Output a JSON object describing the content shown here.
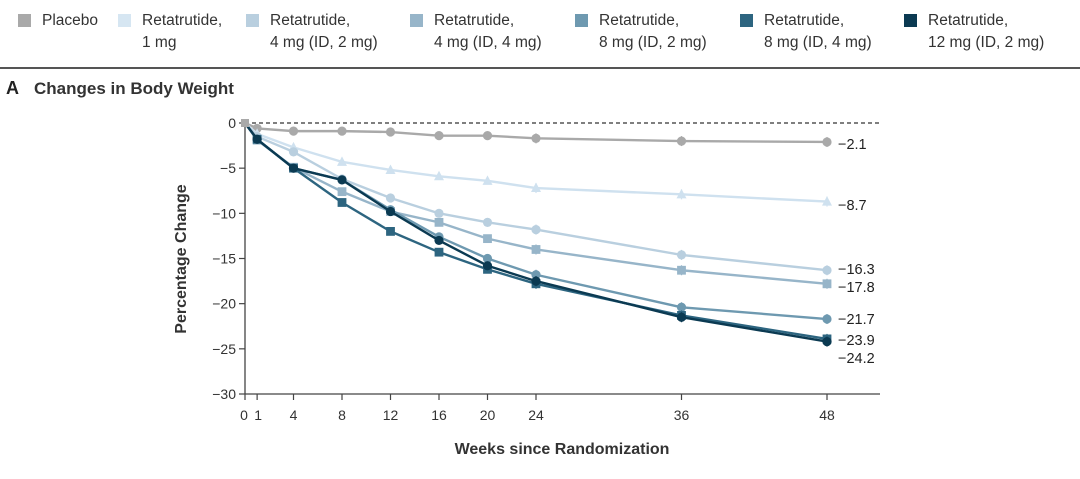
{
  "panel": {
    "letter": "A",
    "title": "Changes in Body Weight"
  },
  "legend": [
    {
      "line1": "Placebo",
      "line2": "",
      "color": "#a9a9a9"
    },
    {
      "line1": "Retatrutide,",
      "line2": "1 mg",
      "color": "#d6e6f2"
    },
    {
      "line1": "Retatrutide,",
      "line2": "4 mg (ID, 2 mg)",
      "color": "#b9cfdf"
    },
    {
      "line1": "Retatrutide,",
      "line2": "4 mg (ID, 4 mg)",
      "color": "#97b5c9"
    },
    {
      "line1": "Retatrutide,",
      "line2": "8 mg (ID, 2 mg)",
      "color": "#6e99b0"
    },
    {
      "line1": "Retatrutide,",
      "line2": "8 mg (ID, 4 mg)",
      "color": "#2d6580"
    },
    {
      "line1": "Retatrutide,",
      "line2": "12 mg (ID, 2 mg)",
      "color": "#0b3a52"
    }
  ],
  "chart_data": {
    "type": "line",
    "xlabel": "Weeks since Randomization",
    "ylabel": "Percentage Change",
    "xlim": [
      0,
      52
    ],
    "ylim": [
      -30,
      0
    ],
    "x_ticks": [
      "0",
      "1",
      "4",
      "8",
      "12",
      "16",
      "20",
      "24",
      "36",
      "48"
    ],
    "y_ticks": [
      "0",
      "−5",
      "−10",
      "−15",
      "−20",
      "−25",
      "−30"
    ],
    "x": [
      0,
      1,
      4,
      8,
      12,
      16,
      20,
      24,
      36,
      48
    ],
    "reference_line": 0,
    "series": [
      {
        "name": "Placebo",
        "marker": "circle",
        "color": "#a9a9a9",
        "values": [
          0,
          -0.6,
          -0.9,
          -0.9,
          -1.0,
          -1.4,
          -1.4,
          -1.7,
          -2.0,
          -2.1
        ],
        "end_label": "−2.1"
      },
      {
        "name": "Retatrutide, 1 mg",
        "marker": "triangle",
        "color": "#cfe1ef",
        "values": [
          0,
          -1.2,
          -2.7,
          -4.3,
          -5.2,
          -5.9,
          -6.4,
          -7.2,
          -7.9,
          -8.7
        ],
        "end_label": "−8.7"
      },
      {
        "name": "Retatrutide, 4 mg (ID, 2 mg)",
        "marker": "circle",
        "color": "#b9cfdf",
        "values": [
          0,
          -1.5,
          -3.2,
          -6.2,
          -8.3,
          -10.0,
          -11.0,
          -11.8,
          -14.6,
          -16.3
        ],
        "end_label": "−16.3"
      },
      {
        "name": "Retatrutide, 4 mg (ID, 4 mg)",
        "marker": "square",
        "color": "#97b5c9",
        "values": [
          0,
          -1.9,
          -4.9,
          -7.6,
          -9.8,
          -11.0,
          -12.8,
          -14.0,
          -16.3,
          -17.8
        ],
        "end_label": "−17.8"
      },
      {
        "name": "Retatrutide, 8 mg (ID, 2 mg)",
        "marker": "circle",
        "color": "#6e99b0",
        "values": [
          0,
          -1.8,
          -5.0,
          -6.3,
          -9.6,
          -12.6,
          -15.0,
          -16.8,
          -20.4,
          -21.7
        ],
        "end_label": "−21.7"
      },
      {
        "name": "Retatrutide, 8 mg (ID, 4 mg)",
        "marker": "square",
        "color": "#2d6580",
        "values": [
          0,
          -1.8,
          -5.0,
          -8.8,
          -12.0,
          -14.3,
          -16.2,
          -17.8,
          -21.3,
          -23.9
        ],
        "end_label": "−23.9"
      },
      {
        "name": "Retatrutide, 12 mg (ID, 2 mg)",
        "marker": "circle",
        "color": "#0b3a52",
        "values": [
          0,
          -1.8,
          -5.0,
          -6.3,
          -9.8,
          -13.0,
          -15.8,
          -17.5,
          -21.5,
          -24.2
        ],
        "end_label": "−24.2"
      }
    ]
  }
}
